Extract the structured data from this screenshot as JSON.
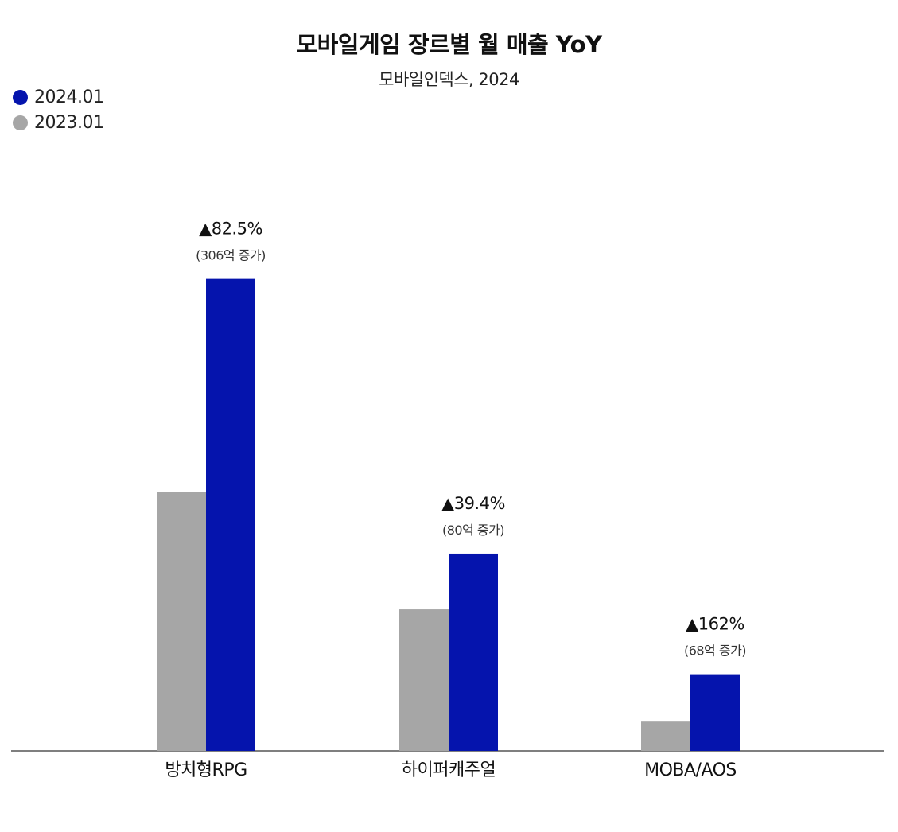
{
  "chart_data": {
    "type": "bar",
    "title": "모바일게임 장르별 월 매출 YoY",
    "subtitle": "모바일인덱스, 2024",
    "categories": [
      "방치형RPG",
      "하이퍼캐주얼",
      "MOBA/AOS"
    ],
    "series": [
      {
        "name": "2023.01",
        "color": "#a6a6a6",
        "values": [
          371,
          203,
          42
        ]
      },
      {
        "name": "2024.01",
        "color": "#0514ad",
        "values": [
          677,
          283,
          110
        ]
      }
    ],
    "annotations": [
      {
        "main": "▲82.5%",
        "sub": "(306억 증가)"
      },
      {
        "main": "▲39.4%",
        "sub": "(80억 증가)"
      },
      {
        "main": "▲162%",
        "sub": "(68억 증가)"
      }
    ],
    "legend_order": [
      "2024.01",
      "2023.01"
    ],
    "legend_position": "top-left",
    "ylim": [
      0,
      680
    ],
    "grid": false,
    "xlabel": "",
    "ylabel": ""
  }
}
